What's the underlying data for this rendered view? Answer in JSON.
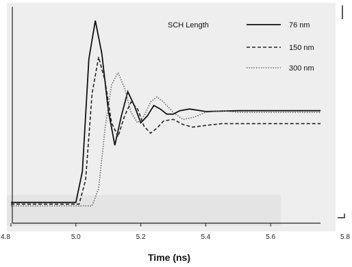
{
  "chart_data": {
    "type": "line",
    "title": "",
    "xlabel": "Time (ns)",
    "ylabel": "",
    "xlim": [
      4.8,
      5.8
    ],
    "ylim": [
      0,
      1.25
    ],
    "x_ticks": [
      {
        "value": 4.8,
        "label": "4.8"
      },
      {
        "value": 5.0,
        "label": "5.0"
      },
      {
        "value": 5.2,
        "label": "5.2"
      },
      {
        "value": 5.4,
        "label": "5.4"
      },
      {
        "value": 5.6,
        "label": "5.6"
      },
      {
        "value": 5.8,
        "label": "5.8"
      }
    ],
    "grid": false,
    "legend": {
      "title": "SCH Length",
      "placement": "top-right"
    },
    "series": [
      {
        "name": "76 nm",
        "style": "solid",
        "color": "#111111",
        "points": [
          [
            4.8,
            0.12
          ],
          [
            5.0,
            0.12
          ],
          [
            5.02,
            0.3
          ],
          [
            5.04,
            0.95
          ],
          [
            5.06,
            1.17
          ],
          [
            5.08,
            0.98
          ],
          [
            5.1,
            0.65
          ],
          [
            5.12,
            0.45
          ],
          [
            5.14,
            0.62
          ],
          [
            5.16,
            0.76
          ],
          [
            5.18,
            0.68
          ],
          [
            5.2,
            0.58
          ],
          [
            5.22,
            0.62
          ],
          [
            5.24,
            0.68
          ],
          [
            5.26,
            0.66
          ],
          [
            5.28,
            0.63
          ],
          [
            5.3,
            0.63
          ],
          [
            5.32,
            0.65
          ],
          [
            5.35,
            0.66
          ],
          [
            5.4,
            0.645
          ],
          [
            5.5,
            0.65
          ],
          [
            5.6,
            0.65
          ],
          [
            5.7,
            0.65
          ],
          [
            5.8,
            0.65
          ]
        ]
      },
      {
        "name": "150 nm",
        "style": "dashed",
        "color": "#222222",
        "points": [
          [
            4.8,
            0.11
          ],
          [
            5.01,
            0.11
          ],
          [
            5.03,
            0.25
          ],
          [
            5.05,
            0.75
          ],
          [
            5.07,
            0.96
          ],
          [
            5.09,
            0.82
          ],
          [
            5.11,
            0.58
          ],
          [
            5.13,
            0.5
          ],
          [
            5.15,
            0.62
          ],
          [
            5.17,
            0.7
          ],
          [
            5.19,
            0.66
          ],
          [
            5.21,
            0.56
          ],
          [
            5.23,
            0.52
          ],
          [
            5.25,
            0.55
          ],
          [
            5.27,
            0.59
          ],
          [
            5.3,
            0.6
          ],
          [
            5.33,
            0.57
          ],
          [
            5.36,
            0.555
          ],
          [
            5.4,
            0.565
          ],
          [
            5.45,
            0.575
          ],
          [
            5.5,
            0.575
          ],
          [
            5.6,
            0.575
          ],
          [
            5.7,
            0.575
          ],
          [
            5.8,
            0.575
          ]
        ]
      },
      {
        "name": "300 nm",
        "style": "dotted",
        "color": "#666666",
        "points": [
          [
            4.8,
            0.1
          ],
          [
            5.05,
            0.1
          ],
          [
            5.07,
            0.2
          ],
          [
            5.09,
            0.55
          ],
          [
            5.11,
            0.8
          ],
          [
            5.13,
            0.87
          ],
          [
            5.15,
            0.78
          ],
          [
            5.17,
            0.64
          ],
          [
            5.19,
            0.58
          ],
          [
            5.21,
            0.62
          ],
          [
            5.23,
            0.7
          ],
          [
            5.25,
            0.73
          ],
          [
            5.27,
            0.7
          ],
          [
            5.3,
            0.64
          ],
          [
            5.33,
            0.6
          ],
          [
            5.36,
            0.61
          ],
          [
            5.4,
            0.64
          ],
          [
            5.45,
            0.65
          ],
          [
            5.5,
            0.64
          ],
          [
            5.6,
            0.64
          ],
          [
            5.7,
            0.64
          ],
          [
            5.8,
            0.64
          ]
        ]
      }
    ]
  }
}
